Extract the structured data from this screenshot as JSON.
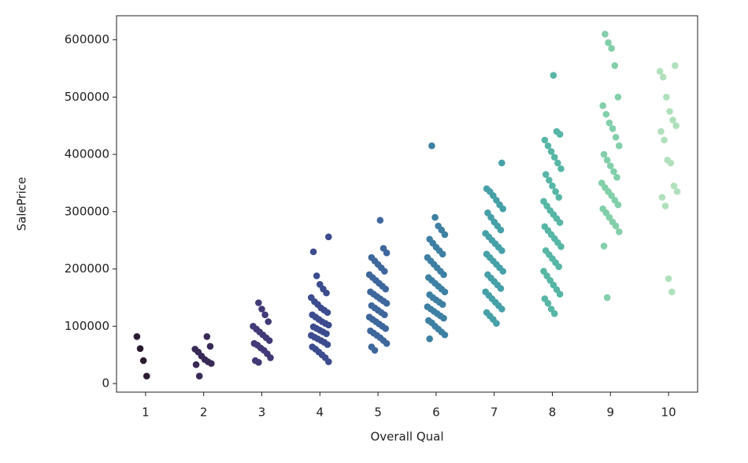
{
  "chart_data": {
    "type": "strip",
    "x_label": "Overall Qual",
    "y_label": "SalePrice",
    "categories": [
      "1",
      "2",
      "3",
      "4",
      "5",
      "6",
      "7",
      "8",
      "9",
      "10"
    ],
    "colors": [
      "#2b1b30",
      "#382a55",
      "#403a76",
      "#3c4c8e",
      "#3e679c",
      "#3e80a3",
      "#46a0a8",
      "#57b6a6",
      "#82cfaa",
      "#b0e0bc"
    ],
    "values": [
      [
        82000,
        61000,
        40000,
        13000
      ],
      [
        82000,
        65000,
        60000,
        55000,
        48000,
        42000,
        38000,
        35000,
        33000,
        13000
      ],
      [
        141000,
        130000,
        120000,
        108000,
        100000,
        95000,
        90000,
        85000,
        80000,
        75000,
        70000,
        67000,
        62000,
        58000,
        52000,
        45000,
        40000,
        37000
      ],
      [
        256000,
        230000,
        188000,
        173000,
        165000,
        158000,
        150000,
        143000,
        138000,
        132000,
        128000,
        124000,
        120000,
        116000,
        112000,
        108000,
        105000,
        102000,
        99000,
        96000,
        93000,
        90000,
        87000,
        84000,
        81000,
        78000,
        75000,
        72000,
        68000,
        64000,
        60000,
        55000,
        50000,
        45000,
        38000
      ],
      [
        285000,
        236000,
        228000,
        220000,
        214000,
        208000,
        202000,
        196000,
        190000,
        185000,
        180000,
        175000,
        170000,
        165000,
        160000,
        156000,
        152000,
        148000,
        144000,
        140000,
        136000,
        132000,
        128000,
        124000,
        120000,
        116000,
        112000,
        108000,
        104000,
        100000,
        96000,
        92000,
        88000,
        84000,
        80000,
        75000,
        70000,
        64000,
        58000
      ],
      [
        415000,
        290000,
        275000,
        268000,
        260000,
        252000,
        245000,
        238000,
        232000,
        226000,
        220000,
        214000,
        208000,
        202000,
        196000,
        190000,
        185000,
        180000,
        175000,
        170000,
        165000,
        160000,
        155000,
        150000,
        146000,
        142000,
        138000,
        134000,
        130000,
        126000,
        122000,
        118000,
        114000,
        110000,
        106000,
        100000,
        95000,
        90000,
        85000,
        78000
      ],
      [
        385000,
        340000,
        335000,
        328000,
        320000,
        312000,
        305000,
        298000,
        290000,
        282000,
        275000,
        268000,
        262000,
        256000,
        250000,
        244000,
        238000,
        232000,
        226000,
        220000,
        214000,
        208000,
        202000,
        196000,
        190000,
        184000,
        178000,
        172000,
        166000,
        160000,
        154000,
        148000,
        142000,
        136000,
        130000,
        124000,
        118000,
        112000,
        105000
      ],
      [
        538000,
        440000,
        435000,
        425000,
        415000,
        405000,
        395000,
        385000,
        375000,
        365000,
        355000,
        345000,
        335000,
        325000,
        318000,
        310000,
        302000,
        295000,
        288000,
        281000,
        274000,
        267000,
        260000,
        253000,
        246000,
        239000,
        232000,
        225000,
        218000,
        211000,
        204000,
        196000,
        188000,
        180000,
        172000,
        164000,
        156000,
        148000,
        140000,
        130000,
        122000
      ],
      [
        610000,
        595000,
        585000,
        555000,
        500000,
        485000,
        470000,
        455000,
        445000,
        430000,
        415000,
        400000,
        390000,
        380000,
        370000,
        360000,
        350000,
        342000,
        335000,
        328000,
        320000,
        312000,
        305000,
        298000,
        290000,
        282000,
        275000,
        265000,
        240000,
        150000
      ],
      [
        555000,
        545000,
        535000,
        500000,
        475000,
        460000,
        450000,
        440000,
        425000,
        390000,
        385000,
        345000,
        335000,
        325000,
        310000,
        183000,
        160000
      ]
    ],
    "ylim": [
      -15000,
      642000
    ],
    "yticks": [
      0,
      100000,
      200000,
      300000,
      400000,
      500000,
      600000
    ]
  }
}
